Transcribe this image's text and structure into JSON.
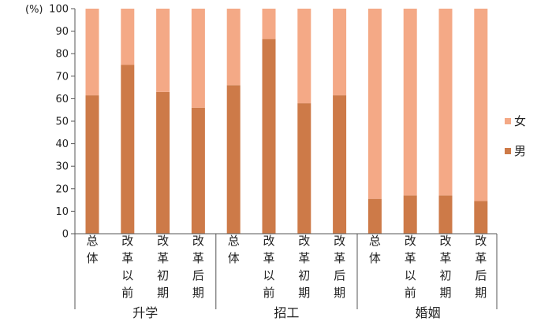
{
  "chart_data": {
    "type": "bar",
    "stacked": true,
    "unit_label": "(%)",
    "ylim": [
      0,
      100
    ],
    "yticks": [
      0,
      10,
      20,
      30,
      40,
      50,
      60,
      70,
      80,
      90,
      100
    ],
    "grid": false,
    "legend_position": "right",
    "groups": [
      {
        "label": "升学",
        "categories": [
          "总体",
          "改革以前",
          "改革初期",
          "改革后期"
        ]
      },
      {
        "label": "招工",
        "categories": [
          "总体",
          "改革以前",
          "改革初期",
          "改革后期"
        ]
      },
      {
        "label": "婚姻",
        "categories": [
          "总体",
          "改革以前",
          "改革初期",
          "改革后期"
        ]
      }
    ],
    "series": [
      {
        "name": "男",
        "color": "#cd7a48",
        "values": [
          61.5,
          75,
          63,
          56,
          66,
          86.5,
          58,
          61.5,
          15.5,
          17,
          17,
          14.5
        ]
      },
      {
        "name": "女",
        "color": "#f4a986",
        "values": [
          38.5,
          25,
          37,
          44,
          34,
          13.5,
          42,
          38.5,
          84.5,
          83,
          83,
          85.5
        ]
      }
    ]
  }
}
